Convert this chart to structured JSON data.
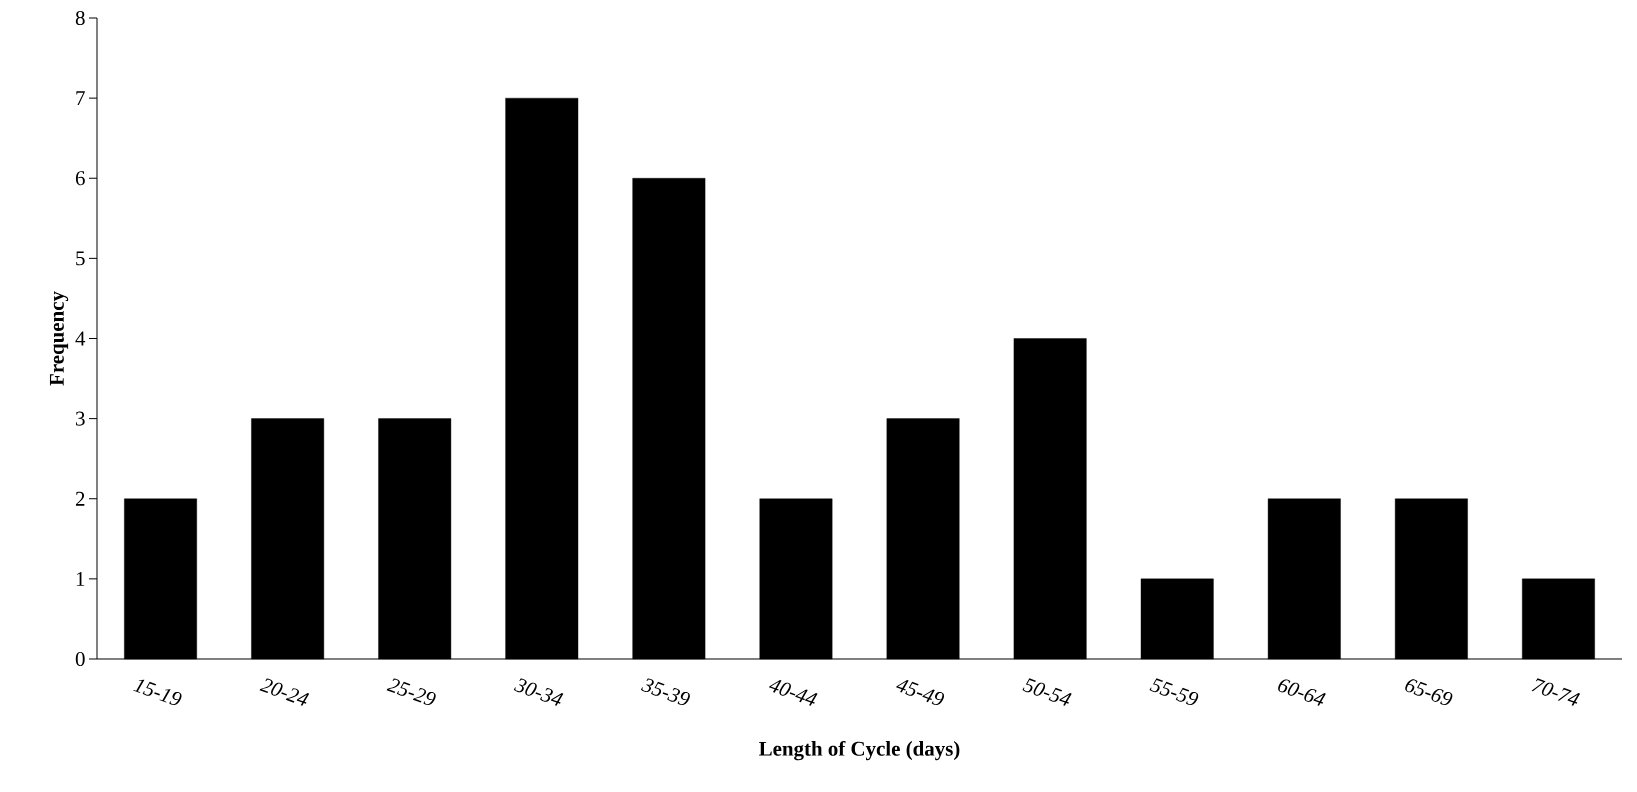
{
  "chart_data": {
    "type": "bar",
    "xlabel": "Length of Cycle (days)",
    "ylabel": "Frequency",
    "categories": [
      "15-19",
      "20-24",
      "25-29",
      "30-34",
      "35-39",
      "40-44",
      "45-49",
      "50-54",
      "55-59",
      "60-64",
      "65-69",
      "70-74"
    ],
    "values": [
      2,
      3,
      3,
      7,
      6,
      2,
      3,
      4,
      1,
      2,
      2,
      1
    ],
    "color": "#000000",
    "ylim": [
      0,
      8
    ],
    "yticks": [
      0,
      1,
      2,
      3,
      4,
      5,
      6,
      7,
      8
    ],
    "grid": false
  }
}
